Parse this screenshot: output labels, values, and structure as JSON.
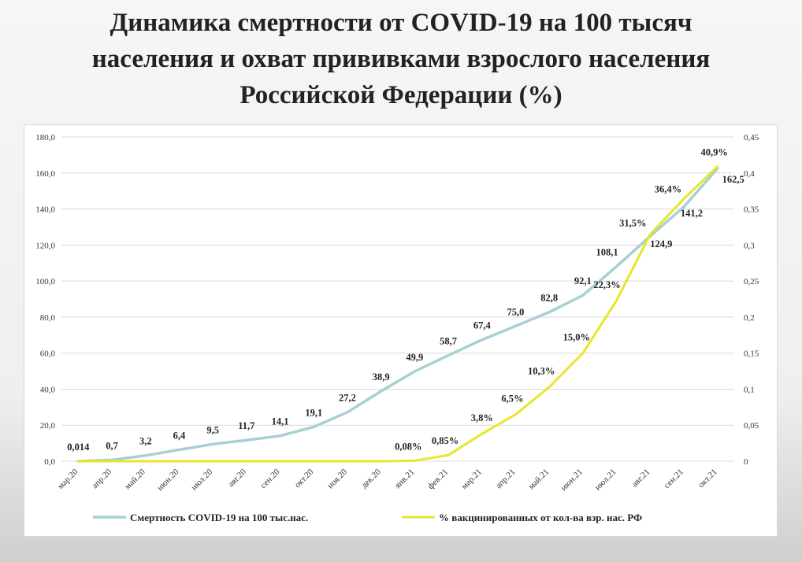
{
  "title_lines": [
    "Динамика смертности от COVID-19 на 100 тысяч",
    "населения и охват прививками взрослого населения",
    "Российской Федерации (%)"
  ],
  "chart_data": {
    "type": "line",
    "title": "Динамика смертности от COVID-19 на 100 тысяч населения и охват прививками взрослого населения Российской Федерации (%)",
    "categories": [
      "мар.20",
      "апр.20",
      "май.20",
      "июн.20",
      "июл.20",
      "авг.20",
      "сен.20",
      "окт.20",
      "ноя.20",
      "дек.20",
      "янв.21",
      "фев.21",
      "мар.21",
      "апр.21",
      "май.21",
      "июн.21",
      "июл.21",
      "авг.21",
      "сен.21",
      "окт.21"
    ],
    "y_left": {
      "ylim": [
        0,
        180
      ],
      "ticks": [
        "0,0",
        "20,0",
        "40,0",
        "60,0",
        "80,0",
        "100,0",
        "120,0",
        "140,0",
        "160,0",
        "180,0"
      ]
    },
    "y_right": {
      "ylim": [
        0,
        0.45
      ],
      "ticks": [
        "0",
        "0,05",
        "0,1",
        "0,15",
        "0,2",
        "0,25",
        "0,3",
        "0,35",
        "0,4",
        "0,45"
      ]
    },
    "grid": true,
    "legend_position": "bottom",
    "series": [
      {
        "name": "Смертность COVID-19 на 100 тыс.нас.",
        "axis": "left",
        "color": "#a8d0d2",
        "values": [
          0.014,
          0.7,
          3.2,
          6.4,
          9.5,
          11.7,
          14.1,
          19.1,
          27.2,
          38.9,
          49.9,
          58.7,
          67.4,
          75.0,
          82.8,
          92.1,
          108.1,
          124.9,
          141.2,
          162.5
        ],
        "labels": [
          "0,014",
          "0,7",
          "3,2",
          "6,4",
          "9,5",
          "11,7",
          "14,1",
          "19,1",
          "27,2",
          "38,9",
          "49,9",
          "58,7",
          "67,4",
          "75,0",
          "82,8",
          "92,1",
          "108,1",
          "124,9",
          "141,2",
          "162,5"
        ]
      },
      {
        "name": "% вакцинированных от кол-ва взр. нас. РФ",
        "axis": "right",
        "color": "#e8e62a",
        "values": [
          0,
          0,
          0,
          0,
          0,
          0,
          0,
          0,
          0,
          0,
          0.0008,
          0.0085,
          0.038,
          0.065,
          0.103,
          0.15,
          0.223,
          0.315,
          0.364,
          0.409
        ],
        "labels": [
          "",
          "",
          "",
          "",
          "",
          "",
          "",
          "",
          "",
          "",
          "0,08%",
          "0,85%",
          "3,8%",
          "6,5%",
          "10,3%",
          "15,0%",
          "22,3%",
          "31,5%",
          "36,4%",
          "40,9%"
        ]
      }
    ]
  }
}
